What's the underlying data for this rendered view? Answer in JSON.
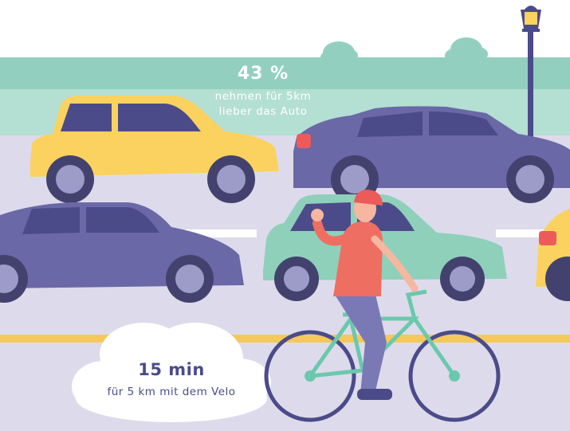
{
  "stat": {
    "percent": "43 %",
    "description_line1": "nehmen für 5km",
    "description_line2": "lieber das Auto"
  },
  "bike_info": {
    "time": "15 min",
    "description": "für 5 km mit dem Velo"
  },
  "colors": {
    "mint_band": "#93cfbf",
    "road": "#dddbeb",
    "lane_mark": "#f5c85b",
    "car_yellow": "#fbd25f",
    "car_purple": "#6a68a6",
    "car_mint": "#8fd0bb",
    "wheel_dark": "#43426f",
    "lamp_post": "#4b4b8a",
    "helmet": "#ec5a5a",
    "shirt": "#ee6f62",
    "bicycle": "#6ac8ad",
    "cloud": "#ffffff",
    "text_dark": "#4b4b8a"
  }
}
